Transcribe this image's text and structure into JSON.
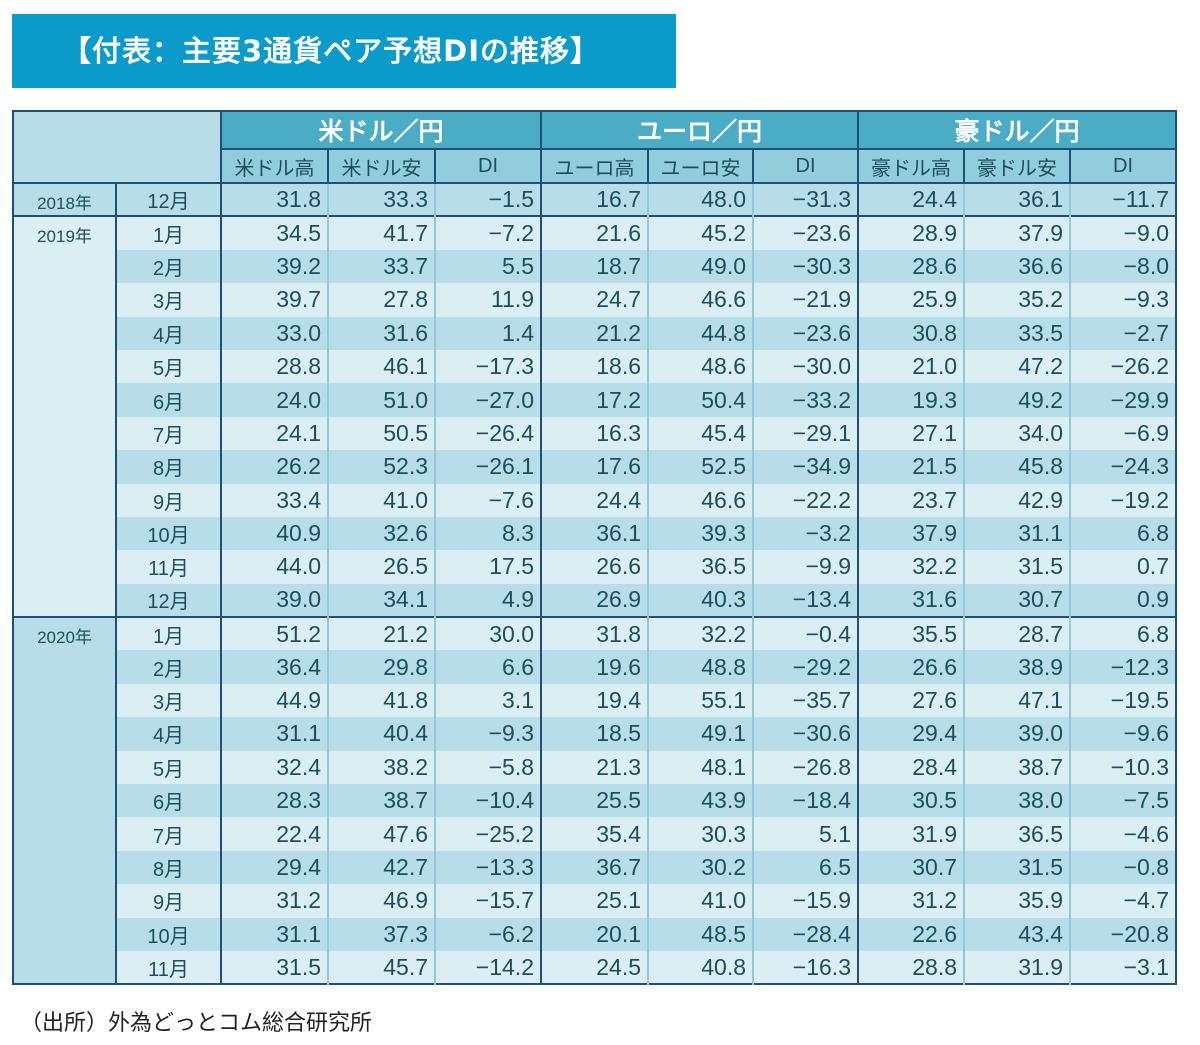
{
  "title": "【付表：主要3通貨ペア予想DIの推移】",
  "groups": [
    "米ドル／円",
    "ユーロ／円",
    "豪ドル／円"
  ],
  "subheaders": [
    "米ドル高",
    "米ドル安",
    "DI",
    "ユーロ高",
    "ユーロ安",
    "DI",
    "豪ドル高",
    "豪ドル安",
    "DI"
  ],
  "years": [
    {
      "label": "2018年",
      "rows": [
        {
          "month": "12月",
          "values": [
            "31.8",
            "33.3",
            "−1.5",
            "16.7",
            "48.0",
            "−31.3",
            "24.4",
            "36.1",
            "−11.7"
          ]
        }
      ]
    },
    {
      "label": "2019年",
      "rows": [
        {
          "month": "1月",
          "values": [
            "34.5",
            "41.7",
            "−7.2",
            "21.6",
            "45.2",
            "−23.6",
            "28.9",
            "37.9",
            "−9.0"
          ]
        },
        {
          "month": "2月",
          "values": [
            "39.2",
            "33.7",
            "5.5",
            "18.7",
            "49.0",
            "−30.3",
            "28.6",
            "36.6",
            "−8.0"
          ]
        },
        {
          "month": "3月",
          "values": [
            "39.7",
            "27.8",
            "11.9",
            "24.7",
            "46.6",
            "−21.9",
            "25.9",
            "35.2",
            "−9.3"
          ]
        },
        {
          "month": "4月",
          "values": [
            "33.0",
            "31.6",
            "1.4",
            "21.2",
            "44.8",
            "−23.6",
            "30.8",
            "33.5",
            "−2.7"
          ]
        },
        {
          "month": "5月",
          "values": [
            "28.8",
            "46.1",
            "−17.3",
            "18.6",
            "48.6",
            "−30.0",
            "21.0",
            "47.2",
            "−26.2"
          ]
        },
        {
          "month": "6月",
          "values": [
            "24.0",
            "51.0",
            "−27.0",
            "17.2",
            "50.4",
            "−33.2",
            "19.3",
            "49.2",
            "−29.9"
          ]
        },
        {
          "month": "7月",
          "values": [
            "24.1",
            "50.5",
            "−26.4",
            "16.3",
            "45.4",
            "−29.1",
            "27.1",
            "34.0",
            "−6.9"
          ]
        },
        {
          "month": "8月",
          "values": [
            "26.2",
            "52.3",
            "−26.1",
            "17.6",
            "52.5",
            "−34.9",
            "21.5",
            "45.8",
            "−24.3"
          ]
        },
        {
          "month": "9月",
          "values": [
            "33.4",
            "41.0",
            "−7.6",
            "24.4",
            "46.6",
            "−22.2",
            "23.7",
            "42.9",
            "−19.2"
          ]
        },
        {
          "month": "10月",
          "values": [
            "40.9",
            "32.6",
            "8.3",
            "36.1",
            "39.3",
            "−3.2",
            "37.9",
            "31.1",
            "6.8"
          ]
        },
        {
          "month": "11月",
          "values": [
            "44.0",
            "26.5",
            "17.5",
            "26.6",
            "36.5",
            "−9.9",
            "32.2",
            "31.5",
            "0.7"
          ]
        },
        {
          "month": "12月",
          "values": [
            "39.0",
            "34.1",
            "4.9",
            "26.9",
            "40.3",
            "−13.4",
            "31.6",
            "30.7",
            "0.9"
          ]
        }
      ]
    },
    {
      "label": "2020年",
      "rows": [
        {
          "month": "1月",
          "values": [
            "51.2",
            "21.2",
            "30.0",
            "31.8",
            "32.2",
            "−0.4",
            "35.5",
            "28.7",
            "6.8"
          ]
        },
        {
          "month": "2月",
          "values": [
            "36.4",
            "29.8",
            "6.6",
            "19.6",
            "48.8",
            "−29.2",
            "26.6",
            "38.9",
            "−12.3"
          ]
        },
        {
          "month": "3月",
          "values": [
            "44.9",
            "41.8",
            "3.1",
            "19.4",
            "55.1",
            "−35.7",
            "27.6",
            "47.1",
            "−19.5"
          ]
        },
        {
          "month": "4月",
          "values": [
            "31.1",
            "40.4",
            "−9.3",
            "18.5",
            "49.1",
            "−30.6",
            "29.4",
            "39.0",
            "−9.6"
          ]
        },
        {
          "month": "5月",
          "values": [
            "32.4",
            "38.2",
            "−5.8",
            "21.3",
            "48.1",
            "−26.8",
            "28.4",
            "38.7",
            "−10.3"
          ]
        },
        {
          "month": "6月",
          "values": [
            "28.3",
            "38.7",
            "−10.4",
            "25.5",
            "43.9",
            "−18.4",
            "30.5",
            "38.0",
            "−7.5"
          ]
        },
        {
          "month": "7月",
          "values": [
            "22.4",
            "47.6",
            "−25.2",
            "35.4",
            "30.3",
            "5.1",
            "31.9",
            "36.5",
            "−4.6"
          ]
        },
        {
          "month": "8月",
          "values": [
            "29.4",
            "42.7",
            "−13.3",
            "36.7",
            "30.2",
            "6.5",
            "30.7",
            "31.5",
            "−0.8"
          ]
        },
        {
          "month": "9月",
          "values": [
            "31.2",
            "46.9",
            "−15.7",
            "25.1",
            "41.0",
            "−15.9",
            "31.2",
            "35.9",
            "−4.7"
          ]
        },
        {
          "month": "10月",
          "values": [
            "31.1",
            "37.3",
            "−6.2",
            "20.1",
            "48.5",
            "−28.4",
            "22.6",
            "43.4",
            "−20.8"
          ]
        },
        {
          "month": "11月",
          "values": [
            "31.5",
            "45.7",
            "−14.2",
            "24.5",
            "40.8",
            "−16.3",
            "28.8",
            "31.9",
            "−3.1"
          ]
        }
      ]
    }
  ],
  "source": "（出所）外為どっとコム総合研究所",
  "colors": {
    "title_bg": "#0a9bcb",
    "group_header": "#4bacc6",
    "sub_header": "#92cddc",
    "row_dark": "#b7dde8",
    "row_light": "#daeef3",
    "border": "#1f4f78"
  }
}
